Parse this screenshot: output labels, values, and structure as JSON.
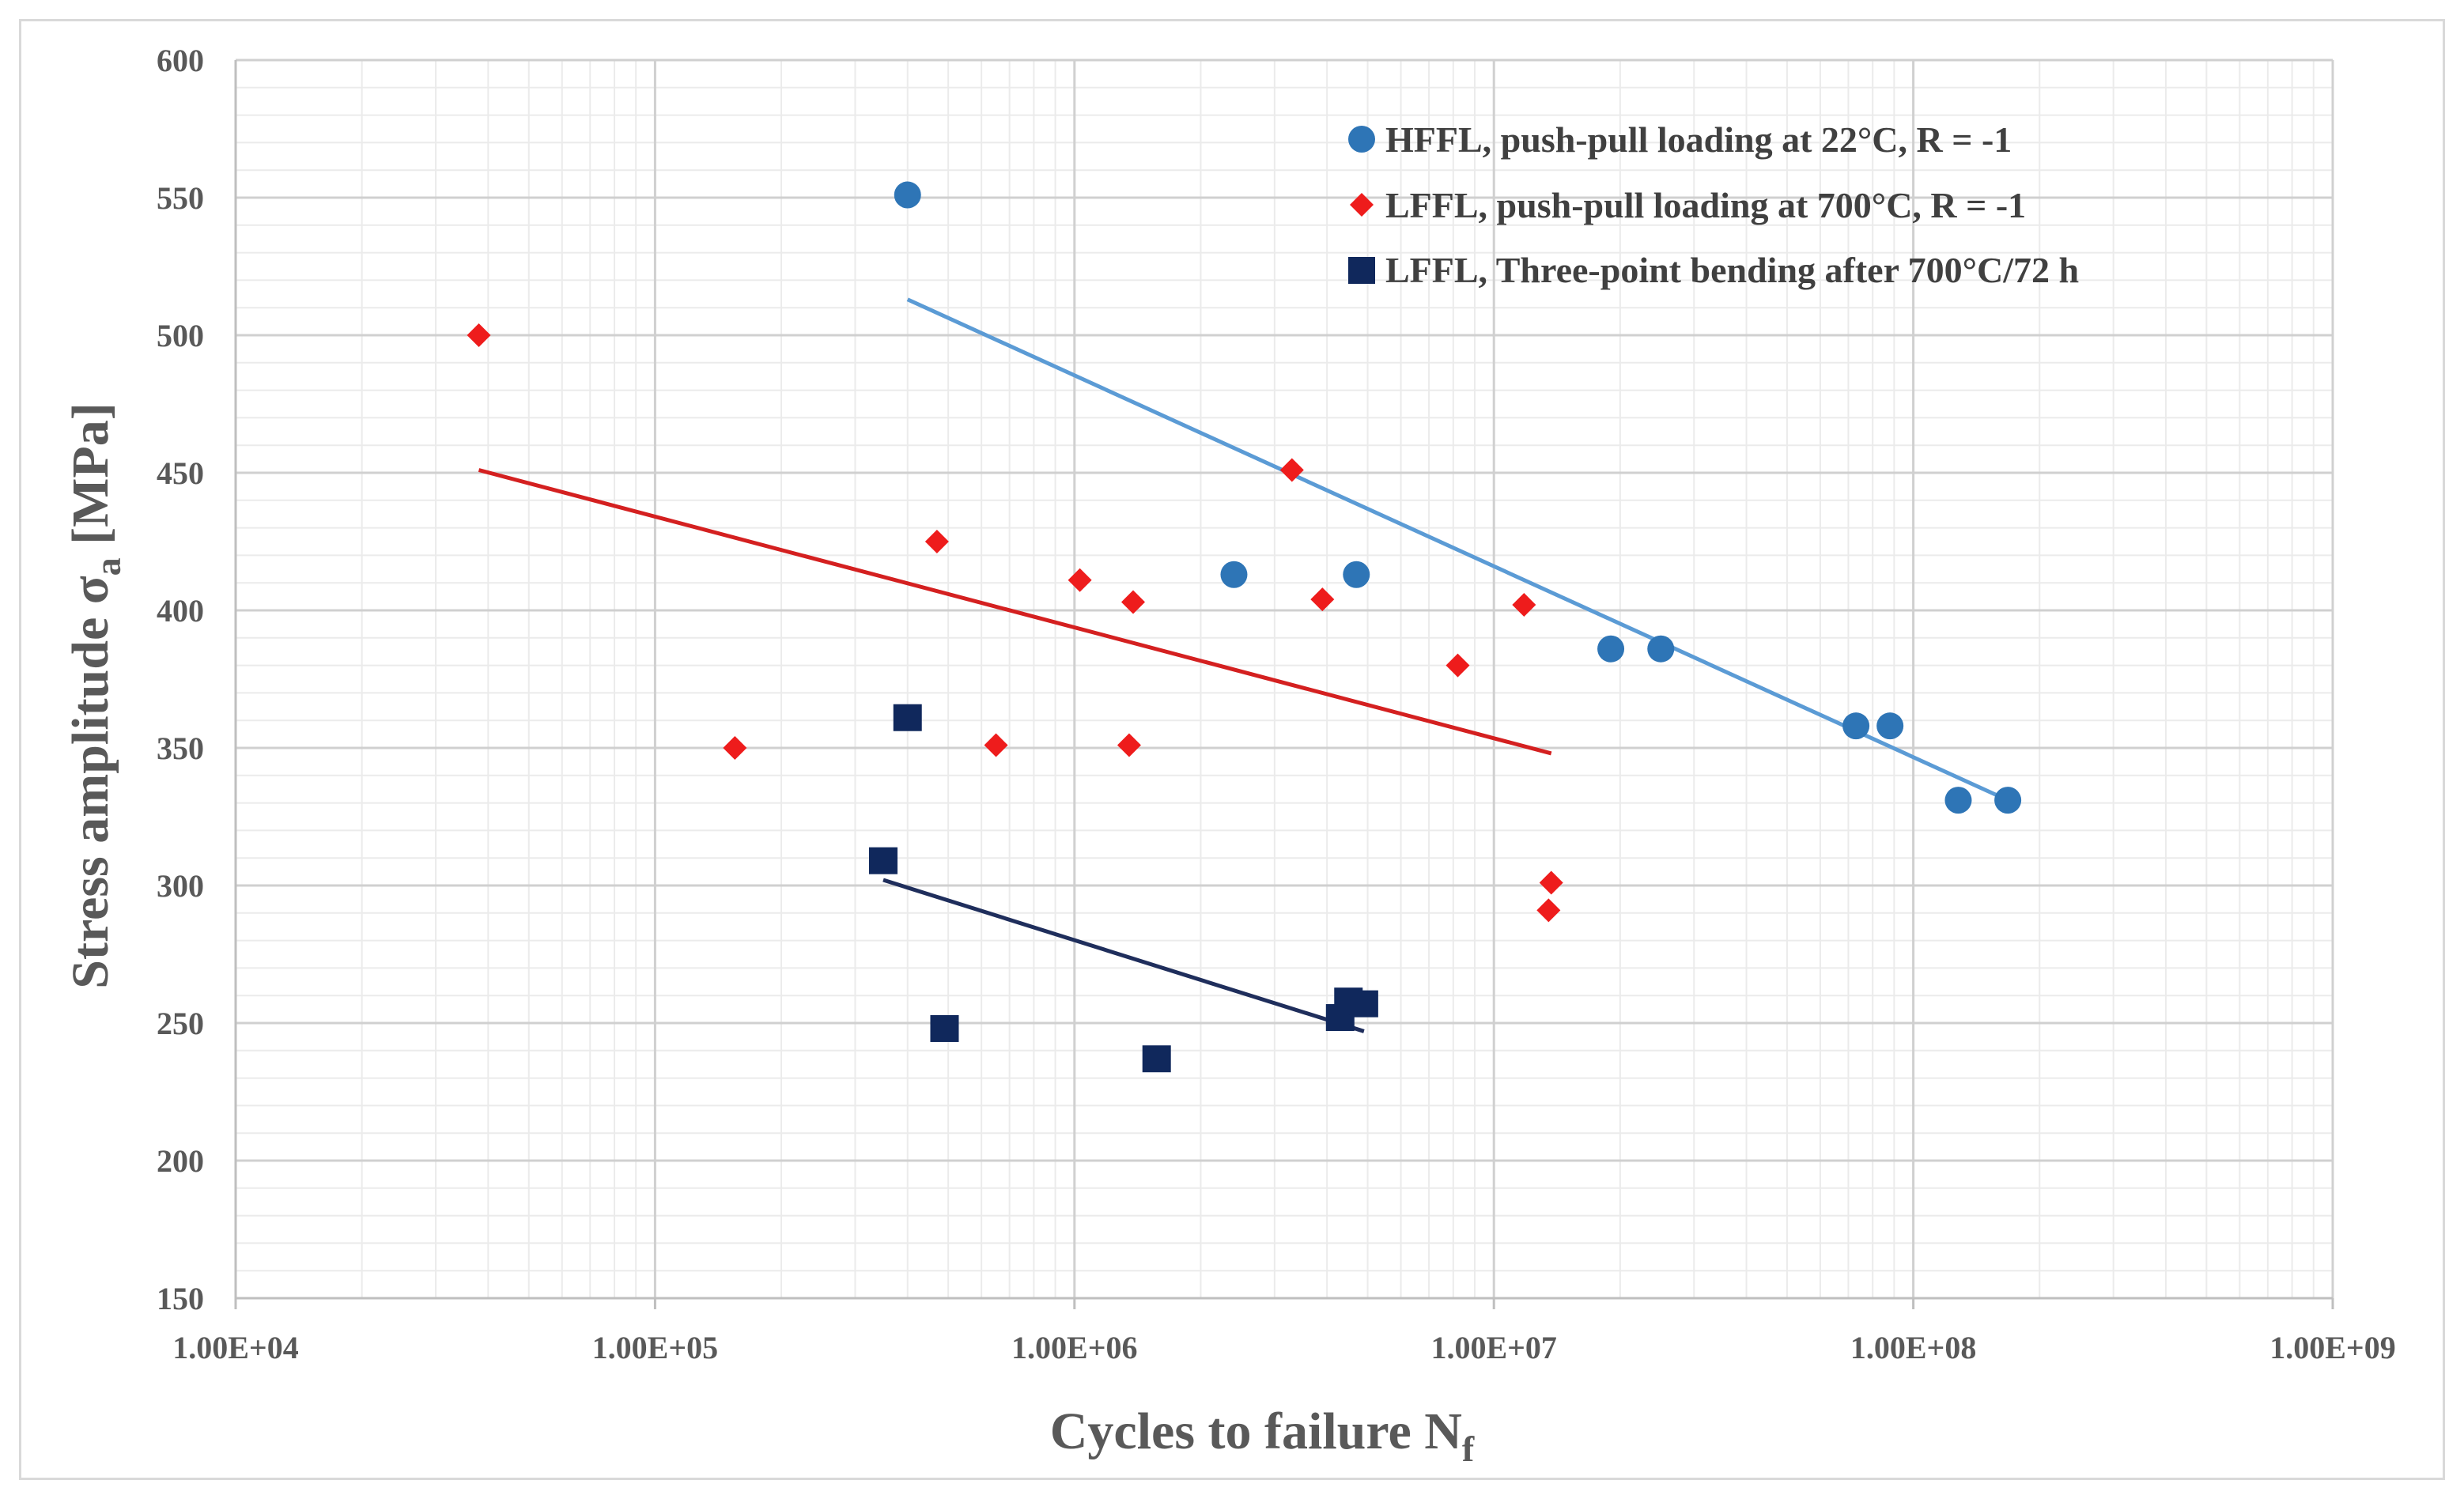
{
  "chart_data": {
    "type": "scatter",
    "title": "",
    "xlabel": "Cycles to failure N",
    "xlabel_sub": "f",
    "ylabel": "Stress amplitude σ",
    "ylabel_sub": "a",
    "ylabel_unit": " [MPa]",
    "xscale": "log",
    "xlim": [
      10000,
      1000000000
    ],
    "ylim": [
      150,
      600
    ],
    "xticks": [
      {
        "value": 10000,
        "label": "1.00E+04"
      },
      {
        "value": 100000,
        "label": "1.00E+05"
      },
      {
        "value": 1000000,
        "label": "1.00E+06"
      },
      {
        "value": 10000000,
        "label": "1.00E+07"
      },
      {
        "value": 100000000,
        "label": "1.00E+08"
      },
      {
        "value": 1000000000,
        "label": "1.00E+09"
      }
    ],
    "yticks": [
      {
        "value": 150,
        "label": "150"
      },
      {
        "value": 200,
        "label": "200"
      },
      {
        "value": 250,
        "label": "250"
      },
      {
        "value": 300,
        "label": "300"
      },
      {
        "value": 350,
        "label": "350"
      },
      {
        "value": 400,
        "label": "400"
      },
      {
        "value": 450,
        "label": "450"
      },
      {
        "value": 500,
        "label": "500"
      },
      {
        "value": 550,
        "label": "550"
      },
      {
        "value": 600,
        "label": "600"
      }
    ],
    "grid": true,
    "legend_position": "top-right",
    "series": [
      {
        "name": "HFFL, push-pull loading at 22°C, R = -1",
        "marker": "circle",
        "color": "#2e75b6",
        "trend_color": "#5b9bd5",
        "points": [
          [
            400000,
            551
          ],
          [
            2400000,
            413
          ],
          [
            4700000,
            413
          ],
          [
            19000000,
            386
          ],
          [
            25000000,
            386
          ],
          [
            73000000,
            358
          ],
          [
            88000000,
            358
          ],
          [
            128000000,
            331
          ],
          [
            168000000,
            331
          ]
        ],
        "trendline": [
          [
            400000,
            513
          ],
          [
            168000000,
            331
          ]
        ]
      },
      {
        "name": "LFFL, push-pull loading at 700°C, R = -1",
        "marker": "diamond",
        "color": "#ee1c1c",
        "trend_color": "#d42020",
        "points": [
          [
            38000,
            500
          ],
          [
            155000,
            350
          ],
          [
            470000,
            425
          ],
          [
            650000,
            351
          ],
          [
            1030000,
            411
          ],
          [
            1350000,
            351
          ],
          [
            1380000,
            403
          ],
          [
            3300000,
            451
          ],
          [
            3900000,
            404
          ],
          [
            8200000,
            380
          ],
          [
            11800000,
            402
          ],
          [
            13700000,
            301
          ],
          [
            13500000,
            291
          ]
        ],
        "trendline": [
          [
            38000,
            451
          ],
          [
            13700000,
            348
          ]
        ]
      },
      {
        "name": "LFFL, Three-point bending after 700°C/72 h",
        "marker": "square",
        "color": "#10285c",
        "trend_color": "#1f2e5c",
        "points": [
          [
            400000,
            361
          ],
          [
            350000,
            309
          ],
          [
            490000,
            248
          ],
          [
            1570000,
            237
          ],
          [
            4300000,
            252
          ],
          [
            4500000,
            258
          ],
          [
            4900000,
            257
          ]
        ],
        "trendline": [
          [
            350000,
            302
          ],
          [
            4900000,
            247
          ]
        ]
      }
    ]
  }
}
